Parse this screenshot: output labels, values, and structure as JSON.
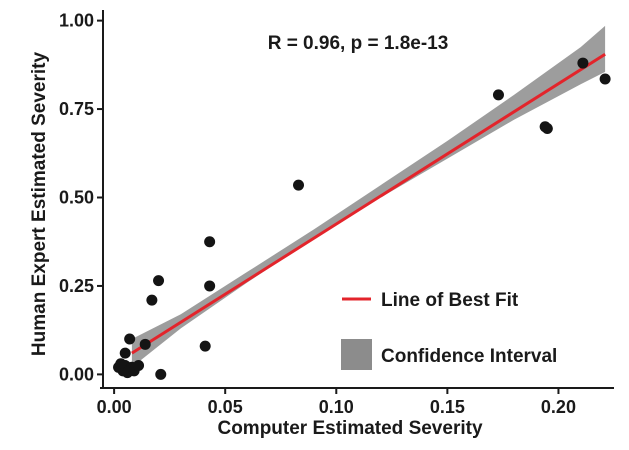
{
  "chart_data": {
    "type": "scatter",
    "title": "",
    "annotation": "R = 0.96, p = 1.8e-13",
    "xlabel": "Computer Estimated Severity",
    "ylabel": "Human Expert Estimated Severity",
    "xlim": [
      -0.005,
      0.225
    ],
    "ylim": [
      -0.03,
      1.03
    ],
    "xticks": [
      0.0,
      0.05,
      0.1,
      0.15,
      0.2
    ],
    "xtick_labels": [
      "0.00",
      "0.05",
      "0.10",
      "0.15",
      "0.20"
    ],
    "yticks": [
      0.0,
      0.25,
      0.5,
      0.75,
      1.0
    ],
    "ytick_labels": [
      "0.00",
      "0.25",
      "0.50",
      "0.75",
      "1.00"
    ],
    "grid": false,
    "points": [
      {
        "x": 0.002,
        "y": 0.02
      },
      {
        "x": 0.003,
        "y": 0.03
      },
      {
        "x": 0.004,
        "y": 0.01
      },
      {
        "x": 0.005,
        "y": 0.025
      },
      {
        "x": 0.006,
        "y": 0.005
      },
      {
        "x": 0.007,
        "y": 0.015
      },
      {
        "x": 0.008,
        "y": 0.02
      },
      {
        "x": 0.009,
        "y": 0.01
      },
      {
        "x": 0.011,
        "y": 0.025
      },
      {
        "x": 0.005,
        "y": 0.06
      },
      {
        "x": 0.007,
        "y": 0.1
      },
      {
        "x": 0.014,
        "y": 0.085
      },
      {
        "x": 0.017,
        "y": 0.21
      },
      {
        "x": 0.021,
        "y": 0.0
      },
      {
        "x": 0.02,
        "y": 0.265
      },
      {
        "x": 0.041,
        "y": 0.08
      },
      {
        "x": 0.043,
        "y": 0.25
      },
      {
        "x": 0.043,
        "y": 0.375
      },
      {
        "x": 0.083,
        "y": 0.535
      },
      {
        "x": 0.173,
        "y": 0.79
      },
      {
        "x": 0.194,
        "y": 0.7
      },
      {
        "x": 0.195,
        "y": 0.695
      },
      {
        "x": 0.211,
        "y": 0.88
      },
      {
        "x": 0.221,
        "y": 0.835
      }
    ],
    "fit_line": {
      "x": [
        0.008,
        0.221
      ],
      "y": [
        0.06,
        0.905
      ]
    },
    "confidence_interval": {
      "x": [
        0.008,
        0.03,
        0.06,
        0.09,
        0.12,
        0.15,
        0.18,
        0.21,
        0.221
      ],
      "lower": [
        0.02,
        0.13,
        0.26,
        0.385,
        0.5,
        0.61,
        0.72,
        0.82,
        0.855
      ],
      "upper": [
        0.1,
        0.17,
        0.29,
        0.41,
        0.535,
        0.66,
        0.79,
        0.925,
        0.985
      ]
    },
    "legend": {
      "position": "bottom-right",
      "entries": [
        {
          "label": "Line of Best Fit",
          "kind": "line"
        },
        {
          "label": "Confidence Interval",
          "kind": "band"
        }
      ]
    },
    "colors": {
      "points": "#141414",
      "fit_line": "#e3242b",
      "band": "#8c8c8c",
      "axis": "#1a1a1a"
    }
  }
}
